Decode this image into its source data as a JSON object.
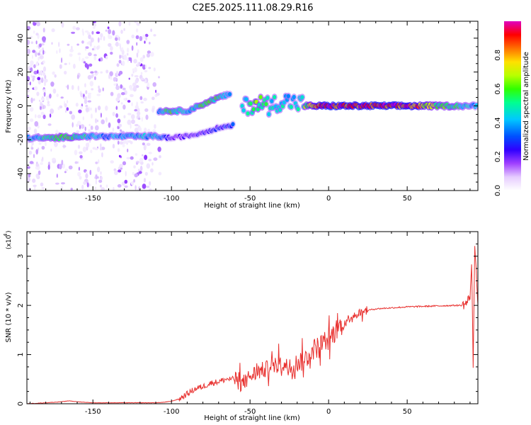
{
  "title": "C2E5.2025.111.08.29.R16",
  "colors": {
    "snr_line": "#e8302e",
    "spectral_cmap": [
      "#ffffff",
      "#e9d8ff",
      "#b57bff",
      "#7000ff",
      "#1a00ff",
      "#0060ff",
      "#00c8ff",
      "#00ff90",
      "#38ff00",
      "#c8ff00",
      "#ffe000",
      "#ff7000",
      "#ff0000",
      "#e000c0"
    ]
  },
  "chart_data": [
    {
      "type": "heatmap",
      "name": "spectrogram",
      "xlabel": "Height of straight line (km)",
      "ylabel": "Frequency (Hz)",
      "xlim": [
        -192,
        95
      ],
      "ylim": [
        -50,
        50
      ],
      "xticks": [
        -150,
        -100,
        -50,
        0,
        50
      ],
      "yticks": [
        -40,
        -20,
        0,
        20,
        40
      ],
      "colorbar": {
        "label": "Normalized spectral amplitude",
        "range": [
          0,
          1
        ],
        "ticks": [
          "0.0",
          "0.2",
          "0.4",
          "0.6",
          "0.8"
        ]
      },
      "ridges": [
        {
          "segment": "low-branch",
          "x": [
            -192,
            -185,
            -175,
            -160,
            -150,
            -140,
            -125,
            -110,
            -100,
            -85,
            -70,
            -60
          ],
          "freq_hz": [
            -19,
            -19,
            -19,
            -18,
            -18,
            -18,
            -18,
            -18,
            -19,
            -17,
            -13,
            -11
          ],
          "amplitude": [
            0.4,
            0.45,
            0.55,
            0.55,
            0.45,
            0.4,
            0.45,
            0.45,
            0.25,
            0.25,
            0.3,
            0.35
          ]
        },
        {
          "segment": "upper-branch",
          "x": [
            -108,
            -100,
            -90,
            -80,
            -70,
            -62
          ],
          "freq_hz": [
            -3,
            -3,
            -3,
            1,
            5,
            7
          ],
          "amplitude": [
            0.45,
            0.55,
            0.45,
            0.55,
            0.55,
            0.4
          ]
        },
        {
          "segment": "merge-region",
          "x": [
            -55,
            -45,
            -38,
            -30,
            -22,
            -15
          ],
          "freq_hz": [
            -1,
            2,
            0,
            3,
            2,
            1
          ],
          "amplitude": [
            0.45,
            0.6,
            0.5,
            0.5,
            0.45,
            0.5
          ]
        },
        {
          "segment": "steady",
          "x": [
            -15,
            -5,
            0,
            10,
            20,
            30,
            40,
            50,
            60,
            70,
            80,
            90,
            95
          ],
          "freq_hz": [
            0,
            0,
            0,
            0,
            0,
            0,
            0,
            0,
            0,
            0,
            0,
            0,
            0
          ],
          "amplitude": [
            0.6,
            0.85,
            0.95,
            0.9,
            0.9,
            0.92,
            0.92,
            0.9,
            0.75,
            0.6,
            0.55,
            0.45,
            0.4
          ]
        }
      ]
    },
    {
      "type": "line",
      "name": "snr",
      "xlabel": "Height of straight line (km)",
      "ylabel": "SNR (10 * v/v)",
      "y_multiplier": "(x10",
      "y_multiplier_exp": "4",
      "xlim": [
        -192,
        95
      ],
      "ylim": [
        0,
        3.5
      ],
      "xticks": [
        -150,
        -100,
        -50,
        0,
        50
      ],
      "yticks": [
        0,
        1,
        2,
        3
      ],
      "series": [
        {
          "x": [
            -192,
            -180,
            -170,
            -165,
            -160,
            -150,
            -140,
            -130,
            -120,
            -110,
            -105,
            -100,
            -95,
            -90,
            -85,
            -80,
            -75,
            -70,
            -65,
            -60,
            -55,
            -50,
            -45,
            -40,
            -35,
            -30,
            -25,
            -20,
            -15,
            -10,
            -5,
            0,
            5,
            8,
            10,
            15,
            20,
            25,
            30,
            40,
            50,
            60,
            70,
            80,
            85,
            88,
            90,
            91,
            92,
            93,
            95
          ],
          "y": [
            0.0,
            0.02,
            0.04,
            0.06,
            0.04,
            0.02,
            0.02,
            0.02,
            0.02,
            0.02,
            0.03,
            0.05,
            0.1,
            0.2,
            0.3,
            0.35,
            0.42,
            0.45,
            0.5,
            0.5,
            0.4,
            0.55,
            0.65,
            0.7,
            0.75,
            0.8,
            0.75,
            0.85,
            0.9,
            1.1,
            1.2,
            1.3,
            1.5,
            1.6,
            1.65,
            1.8,
            1.85,
            1.9,
            1.93,
            1.95,
            1.97,
            1.98,
            1.99,
            2.0,
            2.0,
            2.05,
            2.2,
            2.8,
            0.8,
            3.3,
            2.0
          ]
        }
      ]
    }
  ]
}
